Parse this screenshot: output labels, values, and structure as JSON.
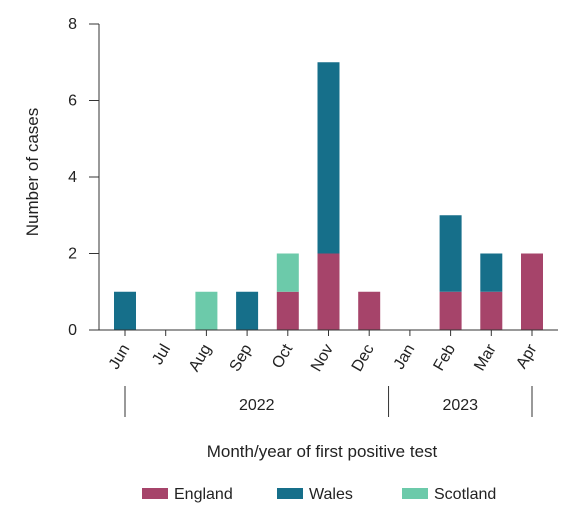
{
  "chart_data": {
    "type": "bar",
    "stacked": true,
    "categories": [
      "Jun",
      "Jul",
      "Aug",
      "Sep",
      "Oct",
      "Nov",
      "Dec",
      "Jan",
      "Feb",
      "Mar",
      "Apr"
    ],
    "series": [
      {
        "name": "England",
        "color": "#a6446a",
        "values": [
          0,
          0,
          0,
          0,
          1,
          2,
          1,
          0,
          1,
          1,
          2
        ]
      },
      {
        "name": "Wales",
        "color": "#166f8a",
        "values": [
          1,
          0,
          0,
          1,
          0,
          5,
          0,
          0,
          2,
          1,
          0
        ]
      },
      {
        "name": "Scotland",
        "color": "#6ccaaa",
        "values": [
          0,
          0,
          1,
          0,
          1,
          0,
          0,
          0,
          0,
          0,
          0
        ]
      }
    ],
    "year_groups": [
      {
        "label": "2022",
        "from": "Jun",
        "to": "Dec"
      },
      {
        "label": "2023",
        "from": "Jan",
        "to": "Apr"
      }
    ],
    "xlabel": "Month/year of first positive test",
    "ylabel": "Number of cases",
    "ylim": [
      0,
      8
    ],
    "yticks": [
      0,
      2,
      4,
      6,
      8
    ],
    "grid": false,
    "legend_position": "bottom"
  }
}
